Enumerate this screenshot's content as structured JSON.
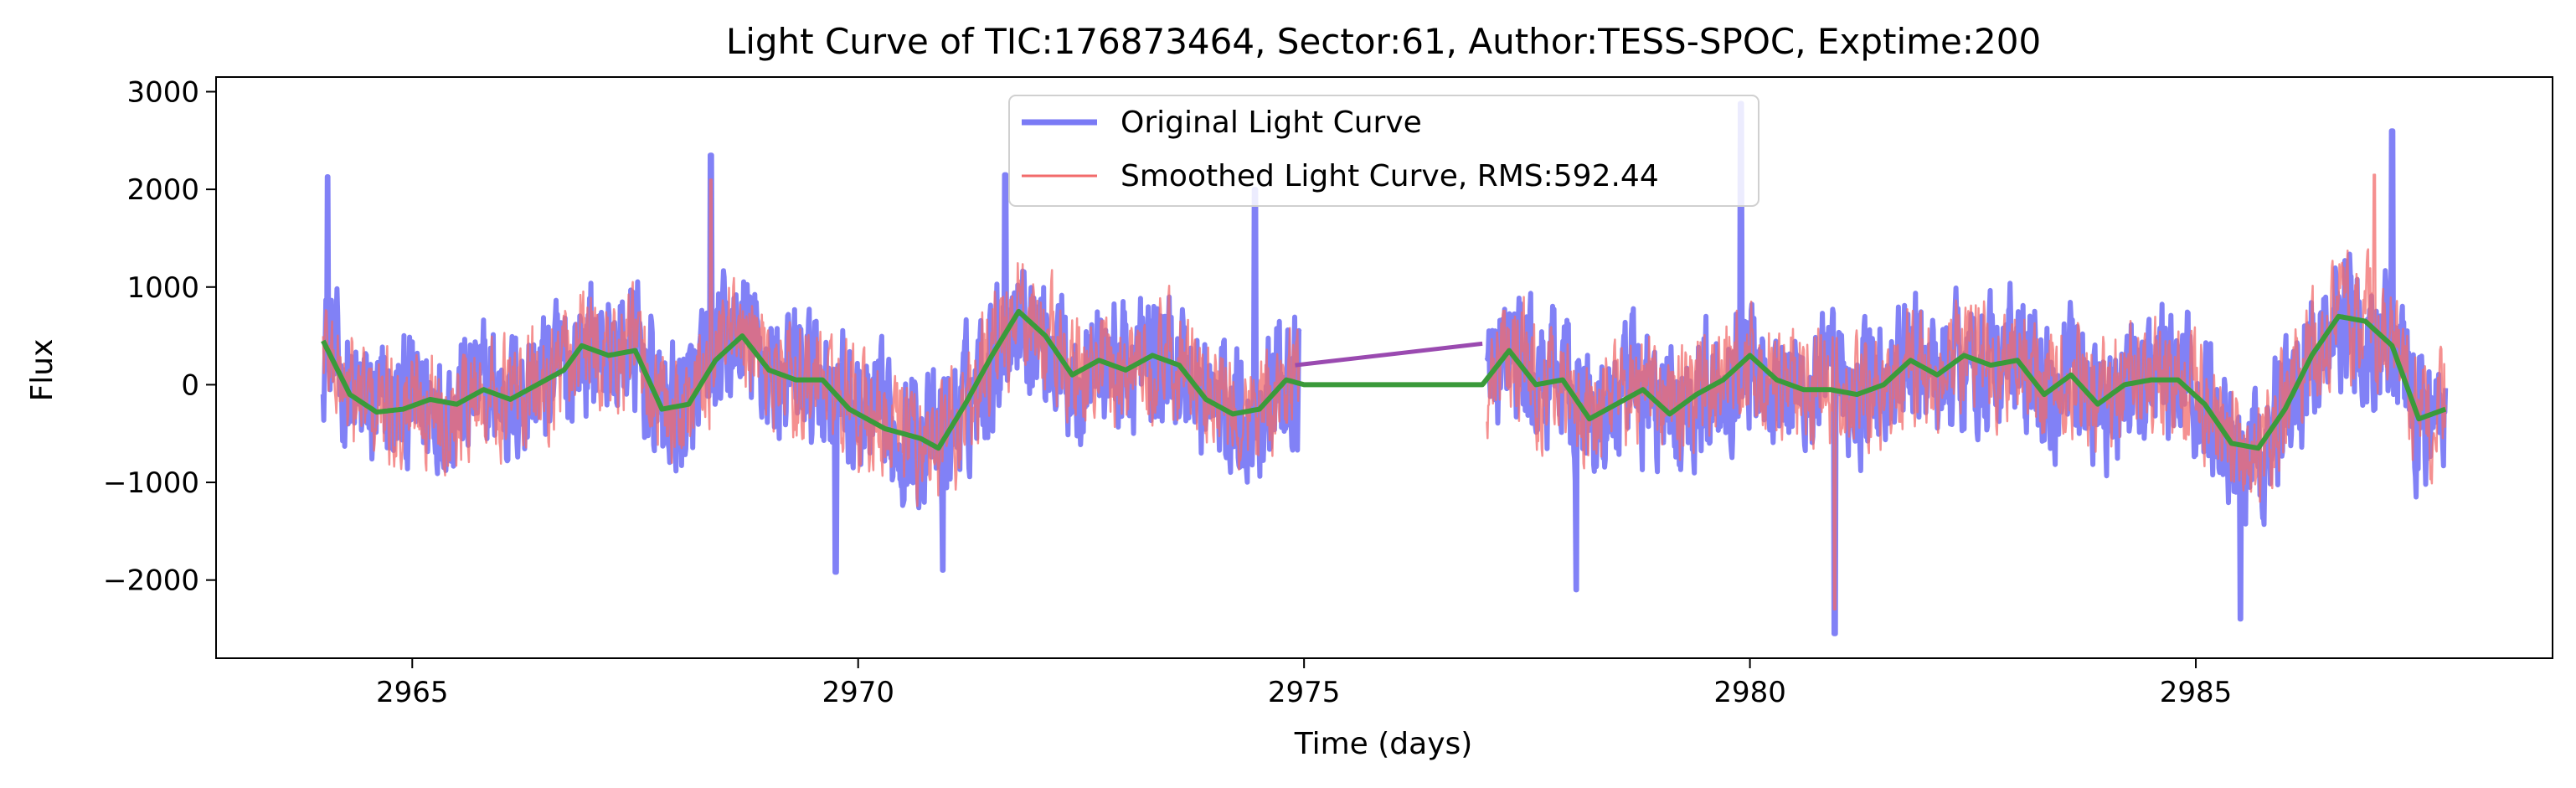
{
  "chart_data": {
    "type": "line",
    "title": "Light Curve of TIC:176873464, Sector:61, Author:TESS-SPOC, Exptime:200",
    "xlabel": "Time (days)",
    "ylabel": "Flux",
    "xlim": [
      2962.8,
      2989.0
    ],
    "ylim": [
      -2800,
      3150
    ],
    "xticks": [
      2965,
      2970,
      2975,
      2980,
      2985
    ],
    "yticks": [
      -2000,
      -1000,
      0,
      1000,
      2000,
      3000
    ],
    "ytick_labels": [
      "−2000",
      "−1000",
      "0",
      "1000",
      "2000",
      "3000"
    ],
    "grid": false,
    "legend_position": "upper center",
    "series": [
      {
        "name": "Original Light Curve",
        "color": "#7a7af5",
        "style": "noisy",
        "segments": [
          [
            2964.0,
            2974.95
          ],
          [
            2977.05,
            2987.8
          ]
        ],
        "amplitude": 650,
        "extremes": [
          {
            "x": 2964.05,
            "y": 2130
          },
          {
            "x": 2968.35,
            "y": 2350
          },
          {
            "x": 2969.75,
            "y": -1920
          },
          {
            "x": 2970.95,
            "y": -1900
          },
          {
            "x": 2971.65,
            "y": 2150
          },
          {
            "x": 2974.45,
            "y": 2000
          },
          {
            "x": 2978.05,
            "y": -2100
          },
          {
            "x": 2979.9,
            "y": 2880
          },
          {
            "x": 2980.95,
            "y": -2550
          },
          {
            "x": 2985.5,
            "y": -2400
          },
          {
            "x": 2987.2,
            "y": 2600
          }
        ]
      },
      {
        "name": "Smoothed Light Curve, RMS:592.44",
        "color": "#f26b6b",
        "style": "noisy",
        "segments": [
          [
            2964.0,
            2974.95
          ],
          [
            2977.05,
            2987.8
          ]
        ],
        "amplitude": 560,
        "extremes": [
          {
            "x": 2968.35,
            "y": 2100
          },
          {
            "x": 2980.95,
            "y": -2300
          },
          {
            "x": 2987.0,
            "y": 2150
          }
        ]
      },
      {
        "name": "",
        "color": "#3a9a3a",
        "style": "smooth",
        "x": [
          2964.0,
          2964.3,
          2964.6,
          2964.9,
          2965.2,
          2965.5,
          2965.8,
          2966.1,
          2966.4,
          2966.7,
          2966.9,
          2967.2,
          2967.5,
          2967.8,
          2968.1,
          2968.4,
          2968.7,
          2969.0,
          2969.3,
          2969.6,
          2969.9,
          2970.3,
          2970.7,
          2970.9,
          2971.2,
          2971.5,
          2971.8,
          2972.1,
          2972.4,
          2972.7,
          2973.0,
          2973.3,
          2973.6,
          2973.9,
          2974.2,
          2974.5,
          2974.8,
          2975.0,
          2977.0,
          2977.3,
          2977.6,
          2977.9,
          2978.2,
          2978.5,
          2978.8,
          2979.1,
          2979.4,
          2979.7,
          2980.0,
          2980.3,
          2980.6,
          2980.9,
          2981.2,
          2981.5,
          2981.8,
          2982.1,
          2982.4,
          2982.7,
          2983.0,
          2983.3,
          2983.6,
          2983.9,
          2984.2,
          2984.5,
          2984.8,
          2985.1,
          2985.4,
          2985.7,
          2986.0,
          2986.3,
          2986.6,
          2986.9,
          2987.2,
          2987.5,
          2987.8
        ],
        "y": [
          450,
          -100,
          -280,
          -250,
          -150,
          -200,
          -50,
          -150,
          0,
          150,
          400,
          300,
          350,
          -250,
          -200,
          250,
          500,
          150,
          50,
          50,
          -250,
          -450,
          -550,
          -650,
          -200,
          300,
          750,
          500,
          100,
          250,
          150,
          300,
          200,
          -150,
          -300,
          -250,
          50,
          0,
          0,
          350,
          0,
          50,
          -350,
          -200,
          -50,
          -300,
          -100,
          50,
          300,
          50,
          -50,
          -50,
          -100,
          0,
          250,
          100,
          300,
          200,
          250,
          -100,
          100,
          -200,
          0,
          50,
          50,
          -200,
          -600,
          -650,
          -250,
          300,
          700,
          650,
          400,
          -350,
          -250
        ]
      },
      {
        "name": "",
        "color": "#9a4ab0",
        "style": "line",
        "x": [
          2974.9,
          2977.0
        ],
        "y": [
          200,
          420
        ]
      }
    ]
  }
}
